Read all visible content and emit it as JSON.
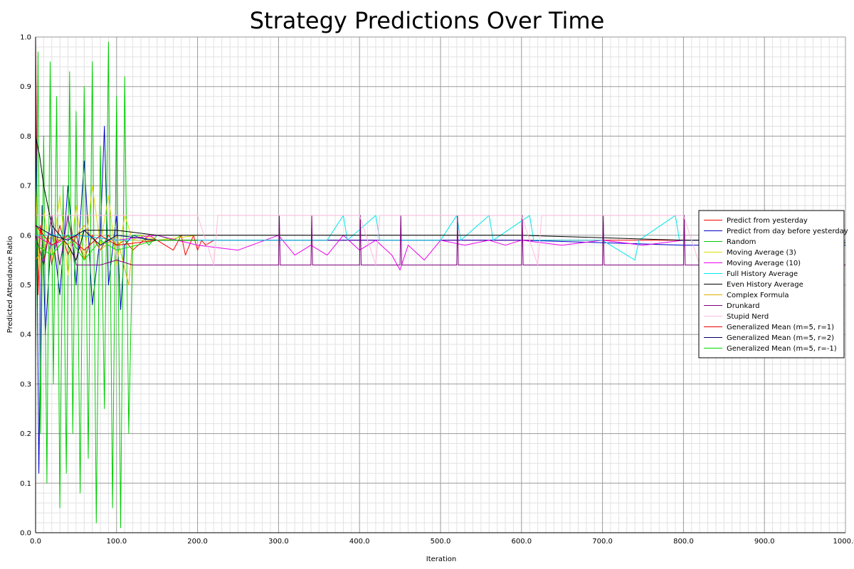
{
  "chart_data": {
    "type": "line",
    "title": "Strategy Predictions Over Time",
    "xlabel": "Iteration",
    "ylabel": "Predicted Attendance Ratio",
    "xlim": [
      0,
      1000
    ],
    "ylim": [
      0,
      1
    ],
    "x_ticks": [
      "0.0",
      "100.0",
      "200.0",
      "300.0",
      "400.0",
      "500.0",
      "600.0",
      "700.0",
      "800.0",
      "900.0",
      "1000.0"
    ],
    "y_ticks": [
      "0.0",
      "0.1",
      "0.2",
      "0.3",
      "0.4",
      "0.5",
      "0.6",
      "0.7",
      "0.8",
      "0.9",
      "1.0"
    ],
    "grid": true,
    "legend_position": "right",
    "series": [
      {
        "name": "Predict from yesterday",
        "color": "#ff0000",
        "points": [
          [
            0,
            1.0
          ],
          [
            3,
            0.48
          ],
          [
            6,
            0.62
          ],
          [
            10,
            0.55
          ],
          [
            15,
            0.6
          ],
          [
            20,
            0.54
          ],
          [
            30,
            0.62
          ],
          [
            40,
            0.56
          ],
          [
            50,
            0.6
          ],
          [
            60,
            0.55
          ],
          [
            70,
            0.6
          ],
          [
            80,
            0.57
          ],
          [
            90,
            0.6
          ],
          [
            100,
            0.58
          ],
          [
            110,
            0.59
          ],
          [
            120,
            0.57
          ],
          [
            140,
            0.6
          ],
          [
            160,
            0.58
          ],
          [
            170,
            0.57
          ],
          [
            180,
            0.6
          ],
          [
            185,
            0.56
          ],
          [
            190,
            0.58
          ],
          [
            195,
            0.6
          ],
          [
            200,
            0.57
          ],
          [
            205,
            0.59
          ],
          [
            210,
            0.58
          ],
          [
            220,
            0.59
          ],
          [
            300,
            0.59
          ],
          [
            500,
            0.59
          ],
          [
            700,
            0.59
          ],
          [
            1000,
            0.59
          ]
        ]
      },
      {
        "name": "Predict from day before yesterday",
        "color": "#0000cc",
        "points": [
          [
            0,
            0.9
          ],
          [
            4,
            0.12
          ],
          [
            8,
            0.66
          ],
          [
            12,
            0.4
          ],
          [
            20,
            0.62
          ],
          [
            30,
            0.48
          ],
          [
            40,
            0.7
          ],
          [
            50,
            0.5
          ],
          [
            60,
            0.75
          ],
          [
            70,
            0.46
          ],
          [
            80,
            0.6
          ],
          [
            85,
            0.82
          ],
          [
            90,
            0.5
          ],
          [
            100,
            0.64
          ],
          [
            105,
            0.45
          ],
          [
            110,
            0.58
          ],
          [
            120,
            0.6
          ],
          [
            140,
            0.59
          ],
          [
            200,
            0.59
          ],
          [
            600,
            0.59
          ],
          [
            800,
            0.58
          ],
          [
            1000,
            0.58
          ]
        ]
      },
      {
        "name": "Random",
        "color": "#00cc00",
        "points": [
          [
            0,
            0.35
          ],
          [
            3,
            0.97
          ],
          [
            6,
            0.2
          ],
          [
            10,
            0.8
          ],
          [
            14,
            0.1
          ],
          [
            18,
            0.95
          ],
          [
            22,
            0.3
          ],
          [
            26,
            0.88
          ],
          [
            30,
            0.05
          ],
          [
            34,
            0.7
          ],
          [
            38,
            0.12
          ],
          [
            42,
            0.93
          ],
          [
            46,
            0.2
          ],
          [
            50,
            0.85
          ],
          [
            55,
            0.08
          ],
          [
            60,
            0.9
          ],
          [
            65,
            0.15
          ],
          [
            70,
            0.95
          ],
          [
            75,
            0.02
          ],
          [
            80,
            0.78
          ],
          [
            85,
            0.25
          ],
          [
            90,
            0.99
          ],
          [
            95,
            0.05
          ],
          [
            100,
            0.88
          ],
          [
            105,
            0.01
          ],
          [
            110,
            0.92
          ],
          [
            115,
            0.2
          ],
          [
            120,
            0.6
          ],
          [
            130,
            0.6
          ],
          [
            140,
            0.58
          ],
          [
            150,
            0.6
          ],
          [
            170,
            0.59
          ],
          [
            180,
            0.6
          ]
        ]
      },
      {
        "name": "Moving Average (3)",
        "color": "#dddd00",
        "points": [
          [
            0,
            0.7
          ],
          [
            5,
            0.52
          ],
          [
            10,
            0.65
          ],
          [
            20,
            0.55
          ],
          [
            30,
            0.68
          ],
          [
            40,
            0.52
          ],
          [
            50,
            0.66
          ],
          [
            60,
            0.55
          ],
          [
            70,
            0.7
          ],
          [
            80,
            0.58
          ],
          [
            90,
            0.68
          ],
          [
            100,
            0.54
          ],
          [
            110,
            0.64
          ],
          [
            120,
            0.59
          ],
          [
            130,
            0.6
          ],
          [
            150,
            0.59
          ],
          [
            200,
            0.6
          ]
        ]
      },
      {
        "name": "Moving Average (10)",
        "color": "#ee00ee",
        "points": [
          [
            0,
            0.6
          ],
          [
            20,
            0.58
          ],
          [
            50,
            0.6
          ],
          [
            100,
            0.59
          ],
          [
            150,
            0.6
          ],
          [
            200,
            0.58
          ],
          [
            250,
            0.57
          ],
          [
            300,
            0.6
          ],
          [
            320,
            0.56
          ],
          [
            340,
            0.58
          ],
          [
            360,
            0.56
          ],
          [
            380,
            0.6
          ],
          [
            400,
            0.57
          ],
          [
            420,
            0.59
          ],
          [
            440,
            0.56
          ],
          [
            450,
            0.53
          ],
          [
            460,
            0.58
          ],
          [
            480,
            0.55
          ],
          [
            500,
            0.59
          ],
          [
            530,
            0.58
          ],
          [
            560,
            0.59
          ],
          [
            580,
            0.58
          ],
          [
            600,
            0.59
          ],
          [
            650,
            0.58
          ],
          [
            700,
            0.59
          ],
          [
            750,
            0.58
          ],
          [
            800,
            0.59
          ],
          [
            900,
            0.59
          ],
          [
            1000,
            0.59
          ]
        ]
      },
      {
        "name": "Full History Average",
        "color": "#00e5ee",
        "points": [
          [
            0,
            0.6
          ],
          [
            50,
            0.6
          ],
          [
            100,
            0.59
          ],
          [
            200,
            0.59
          ],
          [
            360,
            0.59
          ],
          [
            380,
            0.64
          ],
          [
            385,
            0.59
          ],
          [
            420,
            0.64
          ],
          [
            425,
            0.59
          ],
          [
            500,
            0.59
          ],
          [
            520,
            0.64
          ],
          [
            525,
            0.59
          ],
          [
            560,
            0.64
          ],
          [
            565,
            0.59
          ],
          [
            610,
            0.64
          ],
          [
            615,
            0.59
          ],
          [
            700,
            0.59
          ],
          [
            740,
            0.55
          ],
          [
            745,
            0.59
          ],
          [
            790,
            0.64
          ],
          [
            795,
            0.59
          ],
          [
            900,
            0.59
          ],
          [
            1000,
            0.59
          ]
        ]
      },
      {
        "name": "Even History Average",
        "color": "#000000",
        "points": [
          [
            0,
            0.8
          ],
          [
            5,
            0.76
          ],
          [
            10,
            0.7
          ],
          [
            20,
            0.62
          ],
          [
            30,
            0.6
          ],
          [
            40,
            0.58
          ],
          [
            50,
            0.55
          ],
          [
            60,
            0.61
          ],
          [
            100,
            0.61
          ],
          [
            150,
            0.6
          ],
          [
            200,
            0.6
          ],
          [
            300,
            0.6
          ],
          [
            400,
            0.6
          ],
          [
            500,
            0.6
          ],
          [
            600,
            0.6
          ],
          [
            700,
            0.595
          ],
          [
            800,
            0.59
          ],
          [
            900,
            0.59
          ],
          [
            1000,
            0.585
          ]
        ]
      },
      {
        "name": "Complex Formula",
        "color": "#ddaa00",
        "points": [
          [
            0,
            0.55
          ],
          [
            20,
            0.6
          ],
          [
            40,
            0.58
          ],
          [
            60,
            0.62
          ],
          [
            80,
            0.57
          ],
          [
            100,
            0.6
          ],
          [
            115,
            0.5
          ],
          [
            120,
            0.59
          ],
          [
            150,
            0.59
          ],
          [
            200,
            0.59
          ]
        ]
      },
      {
        "name": "Drunkard",
        "color": "#800080",
        "points": [
          [
            0,
            0.6
          ],
          [
            10,
            0.54
          ],
          [
            20,
            0.64
          ],
          [
            30,
            0.54
          ],
          [
            40,
            0.64
          ],
          [
            50,
            0.54
          ],
          [
            80,
            0.54
          ],
          [
            100,
            0.55
          ],
          [
            120,
            0.54
          ],
          [
            300,
            0.54
          ],
          [
            301,
            0.64
          ],
          [
            302,
            0.54
          ],
          [
            340,
            0.54
          ],
          [
            341,
            0.64
          ],
          [
            342,
            0.54
          ],
          [
            400,
            0.54
          ],
          [
            401,
            0.64
          ],
          [
            402,
            0.54
          ],
          [
            450,
            0.54
          ],
          [
            451,
            0.64
          ],
          [
            452,
            0.54
          ],
          [
            520,
            0.54
          ],
          [
            521,
            0.64
          ],
          [
            522,
            0.54
          ],
          [
            600,
            0.54
          ],
          [
            601,
            0.64
          ],
          [
            602,
            0.54
          ],
          [
            700,
            0.54
          ],
          [
            701,
            0.64
          ],
          [
            702,
            0.54
          ],
          [
            800,
            0.54
          ],
          [
            801,
            0.64
          ],
          [
            802,
            0.54
          ],
          [
            900,
            0.54
          ],
          [
            901,
            0.64
          ],
          [
            902,
            0.54
          ],
          [
            1000,
            0.54
          ]
        ]
      },
      {
        "name": "Stupid Nerd",
        "color": "#ffbbdd",
        "points": [
          [
            0,
            0.64
          ],
          [
            200,
            0.64
          ],
          [
            220,
            0.54
          ],
          [
            225,
            0.64
          ],
          [
            400,
            0.64
          ],
          [
            420,
            0.54
          ],
          [
            425,
            0.64
          ],
          [
            600,
            0.64
          ],
          [
            620,
            0.54
          ],
          [
            625,
            0.64
          ],
          [
            800,
            0.64
          ],
          [
            820,
            0.54
          ],
          [
            825,
            0.64
          ],
          [
            1000,
            0.64
          ]
        ]
      },
      {
        "name": "Generalized Mean (m=5, r=1)",
        "color": "#ee0000",
        "points": [
          [
            0,
            0.62
          ],
          [
            20,
            0.58
          ],
          [
            40,
            0.6
          ],
          [
            60,
            0.57
          ],
          [
            80,
            0.6
          ],
          [
            100,
            0.58
          ],
          [
            150,
            0.59
          ],
          [
            200,
            0.59
          ]
        ]
      },
      {
        "name": "Generalized Mean (m=5, r=2)",
        "color": "#000066",
        "points": [
          [
            0,
            0.62
          ],
          [
            20,
            0.6
          ],
          [
            40,
            0.59
          ],
          [
            60,
            0.61
          ],
          [
            80,
            0.58
          ],
          [
            100,
            0.6
          ],
          [
            150,
            0.59
          ],
          [
            200,
            0.59
          ]
        ]
      },
      {
        "name": "Generalized Mean (m=5, r=-1)",
        "color": "#00dd00",
        "points": [
          [
            0,
            0.58
          ],
          [
            20,
            0.56
          ],
          [
            40,
            0.6
          ],
          [
            60,
            0.55
          ],
          [
            80,
            0.59
          ],
          [
            100,
            0.57
          ],
          [
            150,
            0.59
          ],
          [
            200,
            0.59
          ]
        ]
      }
    ]
  }
}
